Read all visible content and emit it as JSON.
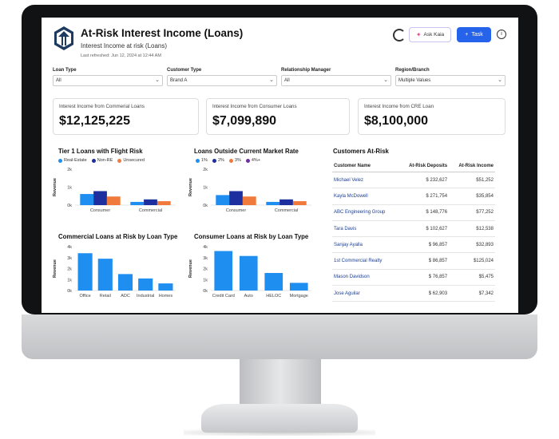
{
  "header": {
    "title": "At-Risk Interest Income (Loans)",
    "subtitle": "Interest Income at risk (Loans)",
    "last_refreshed": "Last refreshed: Jun 12, 2024 at 12:44 AM",
    "ask_label": "Ask Kaia",
    "task_label": "Task",
    "info_glyph": "i"
  },
  "filters": [
    {
      "label": "Loan Type",
      "value": "All"
    },
    {
      "label": "Customer Type",
      "value": "Brand A"
    },
    {
      "label": "Relationship Manager",
      "value": "All"
    },
    {
      "label": "Region/Branch",
      "value": "Multiple Values"
    }
  ],
  "kpis": [
    {
      "label": "Interest Income from Commerial Loans",
      "value": "$12,125,225"
    },
    {
      "label": "Interest Income from Consumer Loans",
      "value": "$7,099,890"
    },
    {
      "label": "Interest Income from CRE Loan",
      "value": "$8,100,000"
    }
  ],
  "colors": {
    "blue_light": "#1f8ef1",
    "blue_dark": "#1d2f9e",
    "orange": "#f07a3b",
    "purple": "#6b2fa0",
    "button_blue": "#2563eb"
  },
  "chart_data": [
    {
      "type": "bar",
      "title": "Tier 1 Loans with Flight Risk",
      "ylabel": "Revenue",
      "yticks": [
        "2k",
        "1k",
        "0k"
      ],
      "ylim": [
        0,
        2000
      ],
      "categories": [
        "Consumer",
        "Commercial"
      ],
      "series": [
        {
          "name": "Real-Estate",
          "color": "#1f8ef1",
          "values": [
            620,
            180
          ]
        },
        {
          "name": "Non-RE",
          "color": "#1d2f9e",
          "values": [
            780,
            320
          ]
        },
        {
          "name": "Unsecured",
          "color": "#f07a3b",
          "values": [
            480,
            220
          ]
        }
      ],
      "legend": "top-left"
    },
    {
      "type": "bar",
      "title": "Loans Outside Current Market Rate",
      "ylabel": "Revenue",
      "yticks": [
        "2k",
        "1k",
        "0k"
      ],
      "ylim": [
        0,
        2000
      ],
      "categories": [
        "Consumer",
        "Commercial"
      ],
      "series": [
        {
          "name": "1%",
          "color": "#1f8ef1",
          "values": [
            560,
            180
          ]
        },
        {
          "name": "2%",
          "color": "#1d2f9e",
          "values": [
            780,
            320
          ]
        },
        {
          "name": "3%",
          "color": "#f07a3b",
          "values": [
            480,
            220
          ]
        },
        {
          "name": "4%+",
          "color": "#6b2fa0",
          "values": [
            0,
            0
          ]
        }
      ],
      "legend": "top-left"
    },
    {
      "type": "bar",
      "title": "Commercial Loans at Risk by Loan Type",
      "ylabel": "Revenue",
      "yticks": [
        "4k",
        "3k",
        "2k",
        "1k",
        "0k"
      ],
      "ylim": [
        0,
        4000
      ],
      "categories": [
        "Office",
        "Retail",
        "ADC",
        "Industrial",
        "Homes"
      ],
      "values": [
        3400,
        2900,
        1500,
        1100,
        650
      ],
      "color": "#1f8ef1"
    },
    {
      "type": "bar",
      "title": "Consumer Loans at Risk by Loan Type",
      "ylabel": "Revenue",
      "yticks": [
        "4k",
        "3k",
        "2k",
        "1k",
        "0k"
      ],
      "ylim": [
        0,
        4000
      ],
      "categories": [
        "Credit Card",
        "Auto",
        "HELOC",
        "Mortgage"
      ],
      "values": [
        3600,
        3150,
        1600,
        700
      ],
      "color": "#1f8ef1"
    }
  ],
  "customers": {
    "title": "Customers At-Risk",
    "columns": [
      "Customer Name",
      "At-Risk Deposits",
      "At-Risk Income"
    ],
    "rows": [
      [
        "Michael Velez",
        "$ 232,627",
        "$51,252"
      ],
      [
        "Kayla McDowell",
        "$ 271,754",
        "$35,854"
      ],
      [
        "ABC Engineering Group",
        "$ 148,776",
        "$77,252"
      ],
      [
        "Tara Davis",
        "$ 102,627",
        "$12,538"
      ],
      [
        "Sanjay Ayalla",
        "$ 96,857",
        "$32,893"
      ],
      [
        "1st Commercial Realty",
        "$ 86,857",
        "$125,024"
      ],
      [
        "Mason Davidson",
        "$ 76,857",
        "$5,475"
      ],
      [
        "Jose Aguilar",
        "$ 62,903",
        "$7,342"
      ]
    ]
  }
}
